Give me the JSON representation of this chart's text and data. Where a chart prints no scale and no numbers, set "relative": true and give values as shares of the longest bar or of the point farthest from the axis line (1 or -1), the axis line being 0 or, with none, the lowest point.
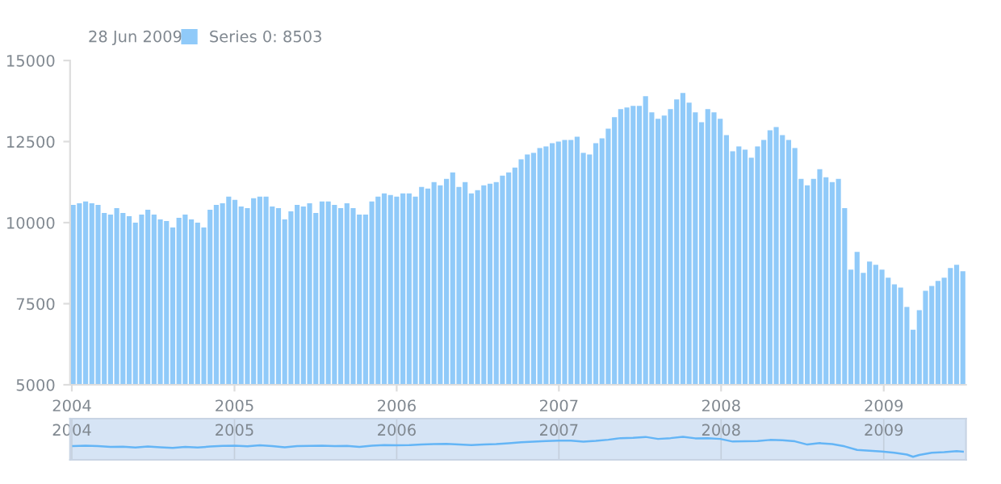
{
  "chart_data": [
    {
      "type": "bar",
      "annotations": [
        "28 Jun 2009"
      ],
      "legend": "top left",
      "grid": false,
      "x": [
        "2004-01-04",
        "2004-01-18",
        "2004-02-01",
        "2004-02-15",
        "2004-02-29",
        "2004-03-14",
        "2004-03-28",
        "2004-04-11",
        "2004-04-25",
        "2004-05-09",
        "2004-05-23",
        "2004-06-06",
        "2004-06-20",
        "2004-07-04",
        "2004-07-18",
        "2004-08-01",
        "2004-08-15",
        "2004-08-29",
        "2004-09-12",
        "2004-09-26",
        "2004-10-10",
        "2004-10-24",
        "2004-11-07",
        "2004-11-21",
        "2004-12-05",
        "2004-12-19",
        "2005-01-02",
        "2005-01-16",
        "2005-01-30",
        "2005-02-13",
        "2005-02-27",
        "2005-03-13",
        "2005-03-27",
        "2005-04-10",
        "2005-04-24",
        "2005-05-08",
        "2005-05-22",
        "2005-06-05",
        "2005-06-19",
        "2005-07-03",
        "2005-07-17",
        "2005-07-31",
        "2005-08-14",
        "2005-08-28",
        "2005-09-11",
        "2005-09-25",
        "2005-10-09",
        "2005-10-23",
        "2005-11-06",
        "2005-11-20",
        "2005-12-04",
        "2005-12-18",
        "2006-01-01",
        "2006-01-15",
        "2006-01-29",
        "2006-02-12",
        "2006-02-26",
        "2006-03-12",
        "2006-03-26",
        "2006-04-09",
        "2006-04-23",
        "2006-05-07",
        "2006-05-21",
        "2006-06-04",
        "2006-06-18",
        "2006-07-02",
        "2006-07-16",
        "2006-07-30",
        "2006-08-13",
        "2006-08-27",
        "2006-09-10",
        "2006-09-24",
        "2006-10-08",
        "2006-10-22",
        "2006-11-05",
        "2006-11-19",
        "2006-12-03",
        "2006-12-17",
        "2006-12-31",
        "2007-01-14",
        "2007-01-28",
        "2007-02-11",
        "2007-02-25",
        "2007-03-11",
        "2007-03-25",
        "2007-04-08",
        "2007-04-22",
        "2007-05-06",
        "2007-05-20",
        "2007-06-03",
        "2007-06-17",
        "2007-07-01",
        "2007-07-15",
        "2007-07-29",
        "2007-08-12",
        "2007-08-26",
        "2007-09-09",
        "2007-09-23",
        "2007-10-07",
        "2007-10-21",
        "2007-11-04",
        "2007-11-18",
        "2007-12-02",
        "2007-12-16",
        "2007-12-30",
        "2008-01-13",
        "2008-01-27",
        "2008-02-10",
        "2008-02-24",
        "2008-03-09",
        "2008-03-23",
        "2008-04-06",
        "2008-04-20",
        "2008-05-04",
        "2008-05-18",
        "2008-06-01",
        "2008-06-15",
        "2008-06-29",
        "2008-07-13",
        "2008-07-27",
        "2008-08-10",
        "2008-08-24",
        "2008-09-07",
        "2008-09-21",
        "2008-10-05",
        "2008-10-19",
        "2008-11-02",
        "2008-11-16",
        "2008-11-30",
        "2008-12-14",
        "2008-12-28",
        "2009-01-11",
        "2009-01-25",
        "2009-02-08",
        "2009-02-22",
        "2009-03-08",
        "2009-03-22",
        "2009-04-05",
        "2009-04-19",
        "2009-05-03",
        "2009-05-17",
        "2009-05-31",
        "2009-06-14",
        "2009-06-28"
      ],
      "series": [
        {
          "name": "Series 0: 8503",
          "color": "#90caf9",
          "values": [
            10550,
            10600,
            10650,
            10600,
            10550,
            10300,
            10250,
            10450,
            10300,
            10200,
            10000,
            10250,
            10400,
            10250,
            10100,
            10050,
            9850,
            10150,
            10250,
            10100,
            10000,
            9850,
            10400,
            10550,
            10600,
            10800,
            10700,
            10500,
            10450,
            10750,
            10800,
            10800,
            10500,
            10450,
            10100,
            10350,
            10550,
            10500,
            10600,
            10300,
            10650,
            10650,
            10550,
            10450,
            10600,
            10450,
            10250,
            10250,
            10650,
            10800,
            10900,
            10850,
            10800,
            10900,
            10900,
            10800,
            11100,
            11050,
            11250,
            11150,
            11350,
            11550,
            11100,
            11250,
            10900,
            11000,
            11150,
            11200,
            11250,
            11450,
            11550,
            11700,
            11950,
            12100,
            12150,
            12300,
            12350,
            12450,
            12500,
            12550,
            12550,
            12650,
            12150,
            12100,
            12450,
            12600,
            12900,
            13250,
            13500,
            13550,
            13600,
            13600,
            13900,
            13400,
            13200,
            13300,
            13500,
            13800,
            14000,
            13700,
            13400,
            13100,
            13500,
            13400,
            13200,
            12700,
            12200,
            12350,
            12250,
            12000,
            12350,
            12550,
            12850,
            12950,
            12700,
            12550,
            12300,
            11350,
            11150,
            11350,
            11650,
            11400,
            11250,
            11350,
            10450,
            8550,
            9100,
            8450,
            8800,
            8700,
            8550,
            8300,
            8100,
            8000,
            7400,
            6700,
            7300,
            7900,
            8050,
            8200,
            8300,
            8600,
            8700,
            8503
          ]
        }
      ],
      "xlim": [
        "2003-12-28",
        "2009-07-05"
      ],
      "xticks": [
        {
          "value": "2004-01-01",
          "label": "2004"
        },
        {
          "value": "2005-01-01",
          "label": "2005"
        },
        {
          "value": "2006-01-01",
          "label": "2006"
        },
        {
          "value": "2007-01-01",
          "label": "2007"
        },
        {
          "value": "2008-01-01",
          "label": "2008"
        },
        {
          "value": "2009-01-01",
          "label": "2009"
        }
      ],
      "ylim": [
        5000,
        15000
      ],
      "yticks": [
        5000,
        7500,
        10000,
        12500,
        15000
      ]
    },
    {
      "type": "line",
      "relative": true,
      "grid": "x",
      "tick_labels": "x",
      "x": [
        "2004-01-04",
        "2004-02-01",
        "2004-02-29",
        "2004-03-28",
        "2004-04-25",
        "2004-05-23",
        "2004-06-20",
        "2004-07-18",
        "2004-08-15",
        "2004-09-12",
        "2004-10-10",
        "2004-11-07",
        "2004-12-05",
        "2005-01-02",
        "2005-01-30",
        "2005-02-27",
        "2005-03-27",
        "2005-04-24",
        "2005-05-22",
        "2005-06-19",
        "2005-07-17",
        "2005-08-14",
        "2005-09-11",
        "2005-10-09",
        "2005-11-06",
        "2005-12-04",
        "2006-01-01",
        "2006-01-29",
        "2006-02-26",
        "2006-03-26",
        "2006-04-23",
        "2006-05-21",
        "2006-06-18",
        "2006-07-16",
        "2006-08-13",
        "2006-09-10",
        "2006-10-08",
        "2006-11-05",
        "2006-12-03",
        "2006-12-31",
        "2007-01-28",
        "2007-02-25",
        "2007-03-25",
        "2007-04-22",
        "2007-05-20",
        "2007-06-17",
        "2007-07-15",
        "2007-08-12",
        "2007-09-09",
        "2007-10-07",
        "2007-11-04",
        "2007-12-02",
        "2007-12-30",
        "2008-01-27",
        "2008-02-24",
        "2008-03-23",
        "2008-04-20",
        "2008-05-18",
        "2008-06-15",
        "2008-07-13",
        "2008-08-10",
        "2008-09-07",
        "2008-10-05",
        "2008-11-02",
        "2008-11-30",
        "2008-12-28",
        "2009-01-25",
        "2009-02-22",
        "2009-03-08",
        "2009-03-22",
        "2009-04-19",
        "2009-05-17",
        "2009-06-14",
        "2009-06-28"
      ],
      "series": [
        {
          "color": "#64b5f6",
          "values": [
            0.53,
            0.55,
            0.53,
            0.49,
            0.5,
            0.46,
            0.51,
            0.47,
            0.44,
            0.49,
            0.46,
            0.51,
            0.54,
            0.55,
            0.52,
            0.57,
            0.53,
            0.47,
            0.53,
            0.54,
            0.55,
            0.53,
            0.54,
            0.49,
            0.55,
            0.58,
            0.57,
            0.58,
            0.61,
            0.63,
            0.64,
            0.61,
            0.58,
            0.61,
            0.63,
            0.67,
            0.72,
            0.75,
            0.78,
            0.8,
            0.8,
            0.75,
            0.79,
            0.85,
            0.93,
            0.95,
            0.99,
            0.89,
            0.93,
            1,
            0.92,
            0.93,
            0.89,
            0.76,
            0.77,
            0.78,
            0.84,
            0.82,
            0.77,
            0.61,
            0.68,
            0.63,
            0.52,
            0.34,
            0.3,
            0.26,
            0.2,
            0.11,
            0,
            0.09,
            0.2,
            0.23,
            0.28,
            0.26
          ]
        }
      ],
      "xlim": [
        "2003-12-28",
        "2009-07-05"
      ],
      "xticks": [
        {
          "value": "2004-01-01",
          "label": "2004"
        },
        {
          "value": "2005-01-01",
          "label": "2005"
        },
        {
          "value": "2006-01-01",
          "label": "2006"
        },
        {
          "value": "2007-01-01",
          "label": "2007"
        },
        {
          "value": "2008-01-01",
          "label": "2008"
        },
        {
          "value": "2009-01-01",
          "label": "2009"
        }
      ]
    }
  ]
}
